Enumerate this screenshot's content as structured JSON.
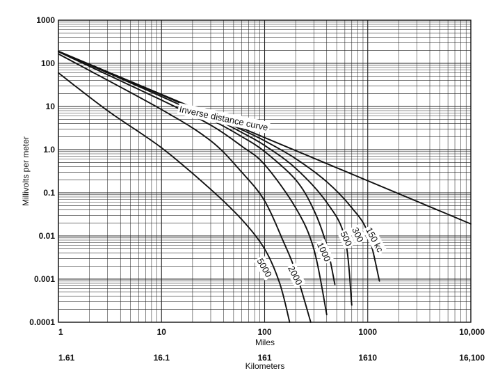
{
  "chart_data": {
    "type": "line",
    "xscale": "log",
    "yscale": "log",
    "xlim": [
      1,
      10000
    ],
    "ylim": [
      0.0001,
      1000
    ],
    "grid": true,
    "xlabel": "Miles",
    "xlabel2": "Kilometers",
    "ylabel": "Millivolts per meter",
    "x_ticks": [
      {
        "value": 1,
        "label": "1"
      },
      {
        "value": 10,
        "label": "10"
      },
      {
        "value": 100,
        "label": "100"
      },
      {
        "value": 1000,
        "label": "1000"
      },
      {
        "value": 10000,
        "label": "10,000"
      }
    ],
    "x2_ticks": [
      {
        "value": 1,
        "label": "1.61"
      },
      {
        "value": 10,
        "label": "16.1"
      },
      {
        "value": 100,
        "label": "161"
      },
      {
        "value": 1000,
        "label": "1610"
      },
      {
        "value": 10000,
        "label": "16,100"
      }
    ],
    "y_ticks": [
      {
        "value": 1000,
        "label": "1000"
      },
      {
        "value": 100,
        "label": "100"
      },
      {
        "value": 10,
        "label": "10"
      },
      {
        "value": 1,
        "label": "1.0"
      },
      {
        "value": 0.1,
        "label": "0.1"
      },
      {
        "value": 0.01,
        "label": "0.01"
      },
      {
        "value": 0.001,
        "label": "0.001"
      },
      {
        "value": 0.0001,
        "label": "0.0001"
      }
    ],
    "series": [
      {
        "name": "Inverse distance curve",
        "label_rotation": 12,
        "points": [
          [
            1,
            190
          ],
          [
            10000,
            0.019
          ]
        ]
      },
      {
        "name": "150 kc",
        "label_at": [
          1150,
          0.008
        ],
        "label_rotation": 62,
        "points": [
          [
            1,
            190
          ],
          [
            10,
            19
          ],
          [
            30,
            6.2
          ],
          [
            60,
            2.9
          ],
          [
            100,
            1.6
          ],
          [
            200,
            0.62
          ],
          [
            400,
            0.18
          ],
          [
            700,
            0.045
          ],
          [
            1000,
            0.012
          ],
          [
            1300,
            0.0009
          ]
        ]
      },
      {
        "name": "300",
        "label_at": [
          790,
          0.0105
        ],
        "label_rotation": 65,
        "points": [
          [
            1,
            190
          ],
          [
            10,
            18.5
          ],
          [
            30,
            5.8
          ],
          [
            60,
            2.5
          ],
          [
            100,
            1.25
          ],
          [
            200,
            0.37
          ],
          [
            400,
            0.06
          ],
          [
            600,
            0.009
          ],
          [
            700,
            0.00025
          ]
        ]
      },
      {
        "name": "500",
        "label_at": [
          610,
          0.0085
        ],
        "label_rotation": 65,
        "points": [
          [
            1,
            190
          ],
          [
            10,
            17
          ],
          [
            30,
            5.0
          ],
          [
            60,
            2.0
          ],
          [
            100,
            0.9
          ],
          [
            200,
            0.2
          ],
          [
            300,
            0.04
          ],
          [
            400,
            0.006
          ],
          [
            480,
            0.00075
          ]
        ]
      },
      {
        "name": "1000",
        "label_at": [
          370,
          0.0042
        ],
        "label_rotation": 65,
        "points": [
          [
            1,
            185
          ],
          [
            10,
            14
          ],
          [
            30,
            3.7
          ],
          [
            60,
            1.2
          ],
          [
            100,
            0.45
          ],
          [
            200,
            0.045
          ],
          [
            300,
            0.005
          ],
          [
            400,
            0.00015
          ]
        ]
      },
      {
        "name": "2000",
        "label_at": [
          195,
          0.0012
        ],
        "label_rotation": 63,
        "points": [
          [
            1,
            165
          ],
          [
            10,
            8.5
          ],
          [
            30,
            1.6
          ],
          [
            60,
            0.3
          ],
          [
            100,
            0.065
          ],
          [
            150,
            0.008
          ],
          [
            200,
            0.0015
          ],
          [
            280,
            0.0001
          ]
        ]
      },
      {
        "name": "5000",
        "label_at": [
          98,
          0.0018
        ],
        "label_rotation": 60,
        "points": [
          [
            1,
            60
          ],
          [
            3,
            8
          ],
          [
            10,
            1.1
          ],
          [
            30,
            0.12
          ],
          [
            60,
            0.024
          ],
          [
            100,
            0.005
          ],
          [
            140,
            0.0008
          ],
          [
            175,
            0.0001
          ]
        ]
      }
    ]
  }
}
